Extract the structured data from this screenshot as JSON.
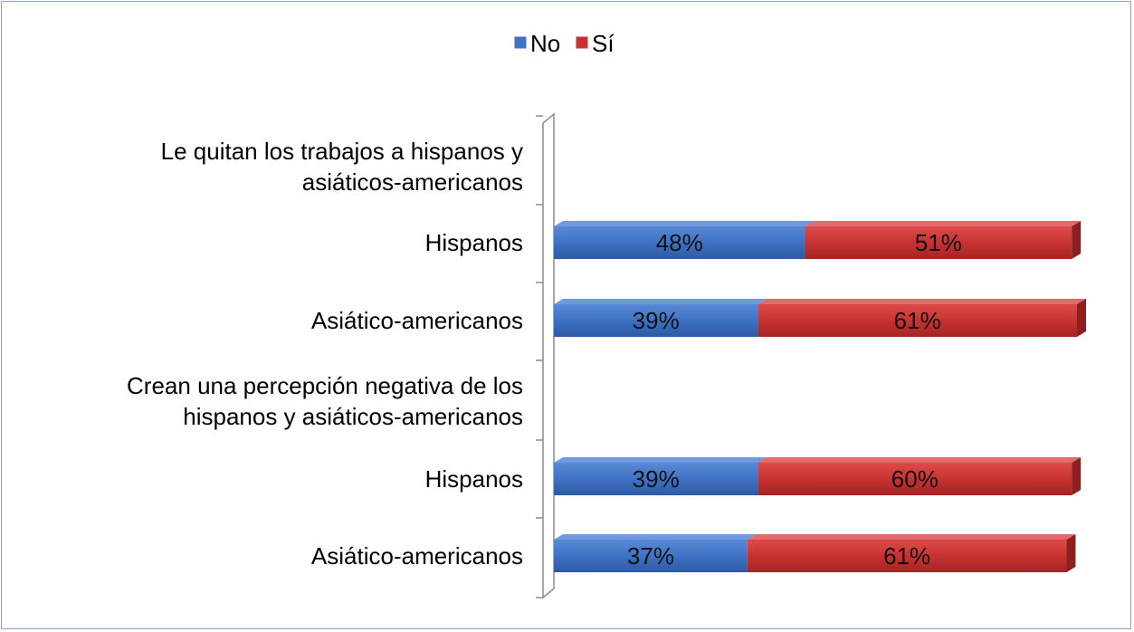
{
  "chart_data": {
    "type": "bar",
    "orientation": "horizontal",
    "stacked": true,
    "percent_stacked": true,
    "three_d": true,
    "legend_position": "top",
    "grid": false,
    "xlim": [
      0,
      100
    ],
    "categories": [
      "Le quitan los trabajos a hispanos y asiáticos-americanos",
      "Hispanos",
      "Asiático-americanos",
      "Crean una percepción negativa de los hispanos y asiáticos-americanos",
      "Hispanos",
      "Asiático-americanos"
    ],
    "series": [
      {
        "name": "No",
        "color": "#3f72c4",
        "values": [
          null,
          48,
          39,
          null,
          39,
          37
        ],
        "labels": [
          "",
          "48%",
          "39%",
          "",
          "39%",
          "37%"
        ]
      },
      {
        "name": "Sí",
        "color": "#c83232",
        "values": [
          null,
          51,
          61,
          null,
          60,
          61
        ],
        "labels": [
          "",
          "51%",
          "61%",
          "",
          "60%",
          "61%"
        ]
      }
    ]
  }
}
